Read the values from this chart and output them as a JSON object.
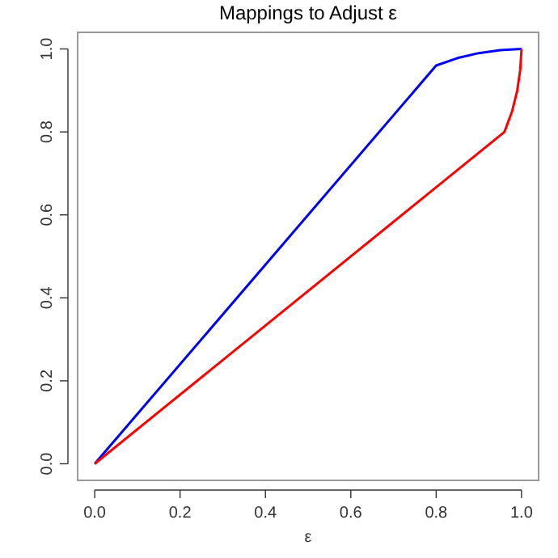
{
  "chart_data": {
    "type": "line",
    "title": "Mappings to Adjust ε",
    "xlabel": "ε",
    "xlim": [
      -0.04,
      1.04
    ],
    "ylim": [
      -0.04,
      1.04
    ],
    "xticks": [
      {
        "value": 0,
        "label": "0.0"
      },
      0.2,
      0.4,
      0.6,
      0.8,
      {
        "value": 1,
        "label": "1.0"
      }
    ],
    "yticks": [
      {
        "value": 0,
        "label": "0.0"
      },
      0.2,
      0.4,
      0.6,
      0.8,
      {
        "value": 1,
        "label": "1.0"
      }
    ],
    "grid": false,
    "marker": "none",
    "line_style": "solid",
    "series": [
      {
        "color": "#0000ff",
        "x": [
          0,
          0.8,
          0.85,
          0.9,
          0.95,
          1
        ],
        "values": [
          0,
          0.96,
          0.978,
          0.99,
          0.997,
          1
        ]
      },
      {
        "color": "#ff0000",
        "x": [
          0,
          0.96,
          0.978,
          0.99,
          0.997,
          1
        ],
        "values": [
          0,
          0.8,
          0.85,
          0.9,
          0.95,
          1
        ]
      }
    ]
  }
}
